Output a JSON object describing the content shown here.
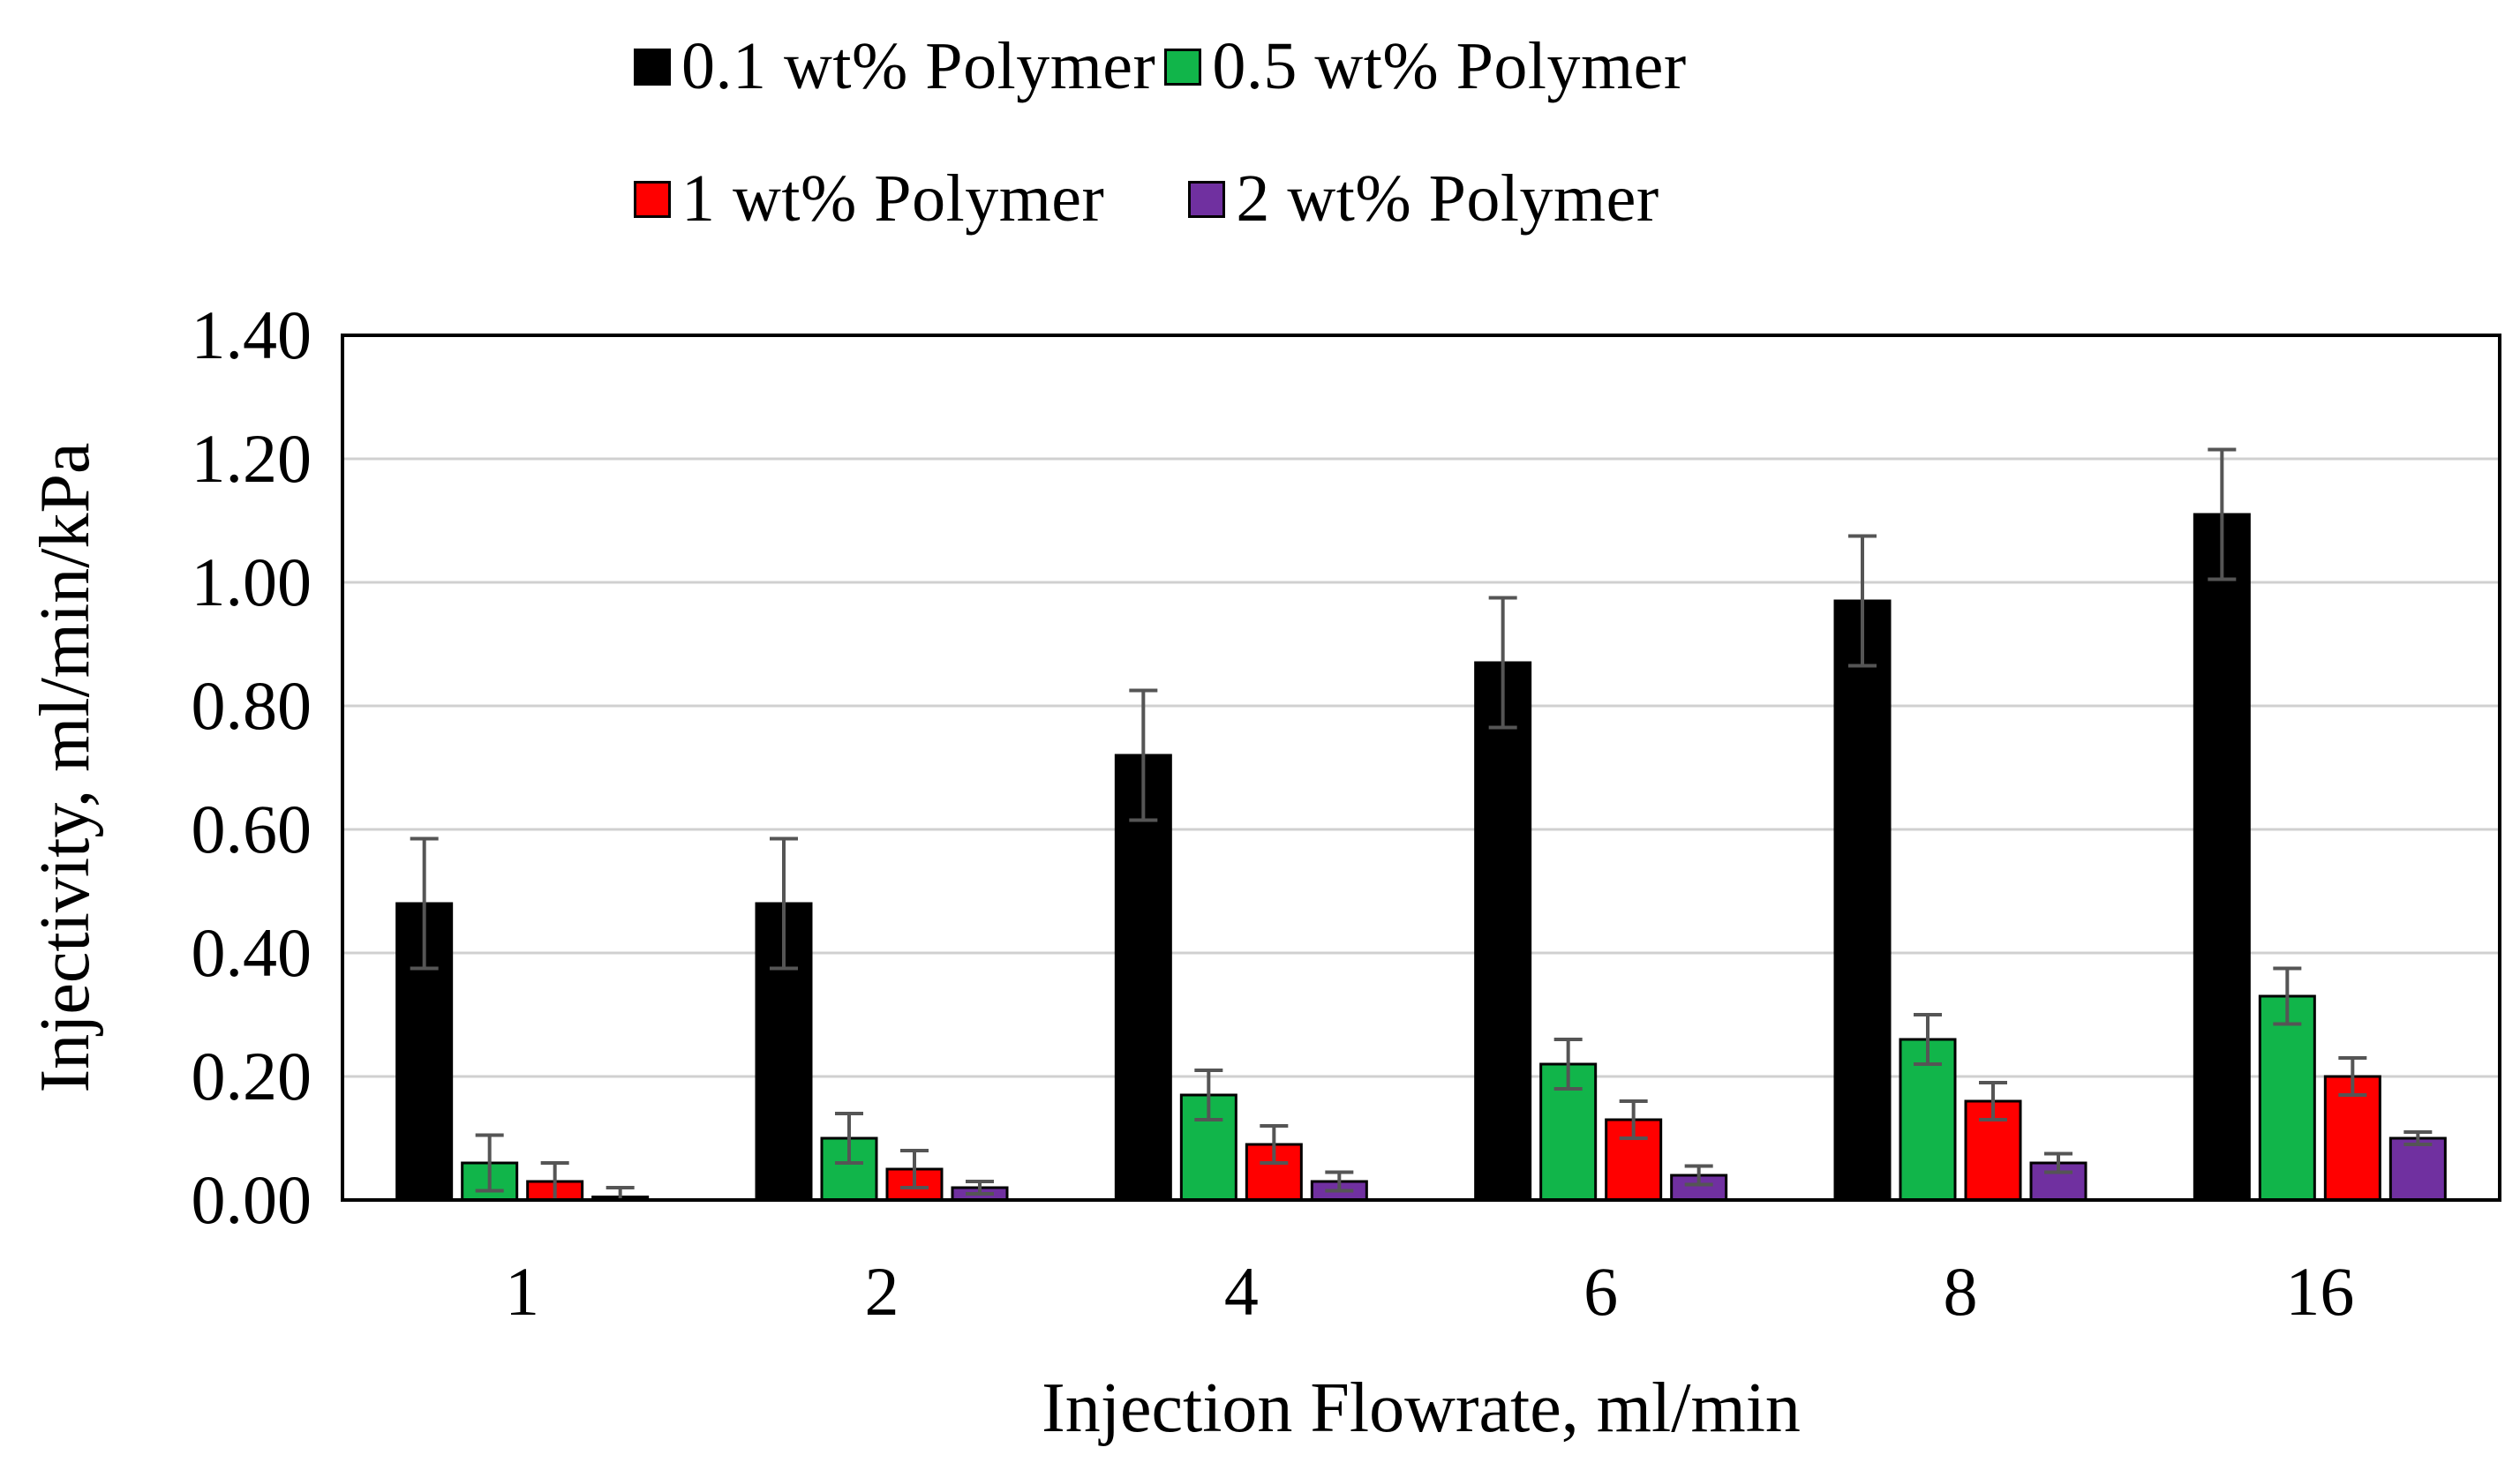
{
  "chart_data": {
    "type": "bar",
    "xlabel": "Injection Flowrate, ml/min",
    "ylabel": "Injectivity, ml/min/kPa",
    "categories": [
      "1",
      "2",
      "4",
      "6",
      "8",
      "16"
    ],
    "ylim": [
      0,
      1.4
    ],
    "yticks": [
      "0.00",
      "0.20",
      "0.40",
      "0.60",
      "0.80",
      "1.00",
      "1.20",
      "1.40"
    ],
    "grid": true,
    "legend_position": "top",
    "series": [
      {
        "name": "0.1 wt% Polymer",
        "color": "#000000",
        "values": [
          0.48,
          0.48,
          0.72,
          0.87,
          0.97,
          1.11
        ],
        "errors": [
          0.105,
          0.105,
          0.105,
          0.105,
          0.105,
          0.105
        ]
      },
      {
        "name": "0.5 wt% Polymer",
        "color": "#11b54a",
        "values": [
          0.06,
          0.1,
          0.17,
          0.22,
          0.26,
          0.33
        ],
        "errors": [
          0.045,
          0.04,
          0.04,
          0.04,
          0.04,
          0.045
        ]
      },
      {
        "name": "1 wt% Polymer",
        "color": "#ff0000",
        "values": [
          0.03,
          0.05,
          0.09,
          0.13,
          0.16,
          0.2
        ],
        "errors": [
          0.03,
          0.03,
          0.03,
          0.03,
          0.03,
          0.03
        ]
      },
      {
        "name": "2 wt% Polymer",
        "color": "#7030a0",
        "values": [
          0.005,
          0.02,
          0.03,
          0.04,
          0.06,
          0.1
        ],
        "errors": [
          0.015,
          0.01,
          0.015,
          0.015,
          0.015,
          0.01
        ]
      }
    ]
  }
}
